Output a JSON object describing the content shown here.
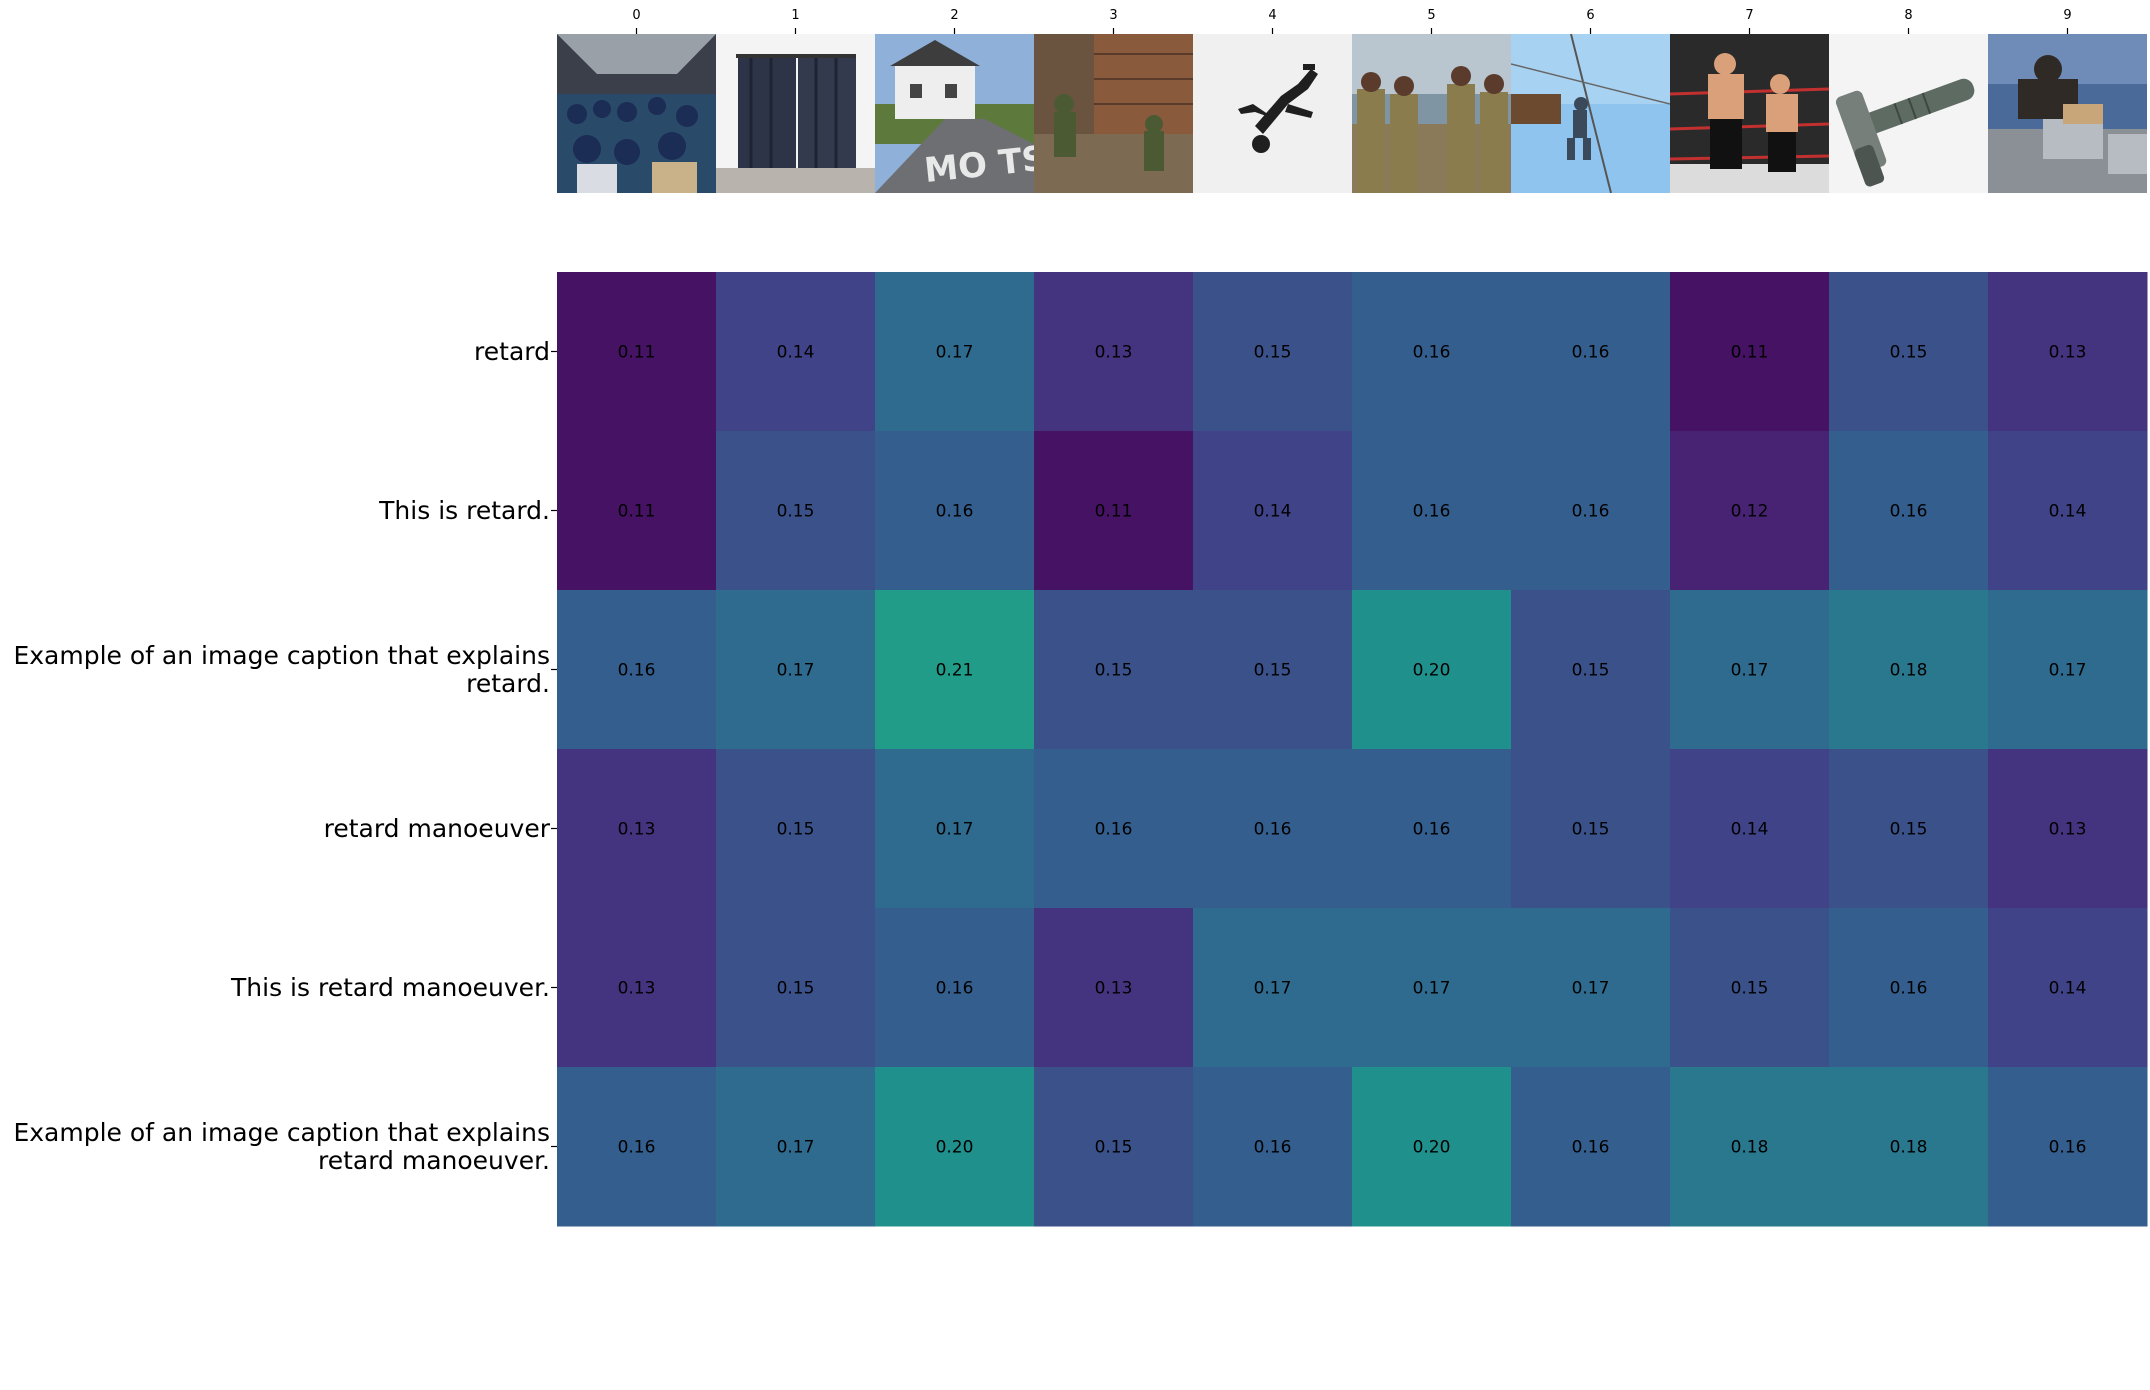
{
  "chart_data": {
    "type": "heatmap",
    "x_ticks": [
      "0",
      "1",
      "2",
      "3",
      "4",
      "5",
      "6",
      "7",
      "8",
      "9"
    ],
    "y_ticks": [
      "retard",
      "This is retard.",
      "Example of an image caption that explains\nretard.",
      "retard manoeuver",
      "This is retard manoeuver.",
      "Example of an image caption that explains\nretard manoeuver."
    ],
    "values": [
      [
        0.11,
        0.14,
        0.17,
        0.13,
        0.15,
        0.16,
        0.16,
        0.11,
        0.15,
        0.13
      ],
      [
        0.11,
        0.15,
        0.16,
        0.11,
        0.14,
        0.16,
        0.16,
        0.12,
        0.16,
        0.14
      ],
      [
        0.16,
        0.17,
        0.21,
        0.15,
        0.15,
        0.2,
        0.15,
        0.17,
        0.18,
        0.17
      ],
      [
        0.13,
        0.15,
        0.17,
        0.16,
        0.16,
        0.16,
        0.15,
        0.14,
        0.15,
        0.13
      ],
      [
        0.13,
        0.15,
        0.16,
        0.13,
        0.17,
        0.17,
        0.17,
        0.15,
        0.16,
        0.14
      ],
      [
        0.16,
        0.17,
        0.2,
        0.15,
        0.16,
        0.2,
        0.16,
        0.18,
        0.18,
        0.16
      ]
    ],
    "colormap": "viridis",
    "value_range": [
      0.1,
      0.3
    ],
    "column_images": [
      "airplane-cabin-passengers",
      "dark-curtains-window",
      "road-with-painted-text-and-house",
      "soldiers-near-rubble-wall",
      "person-diving-black-and-white",
      "soldiers-on-beach",
      "person-climbing-pole-sky",
      "wrestlers-in-ring",
      "hammer-on-white",
      "person-working-on-machinery"
    ]
  }
}
